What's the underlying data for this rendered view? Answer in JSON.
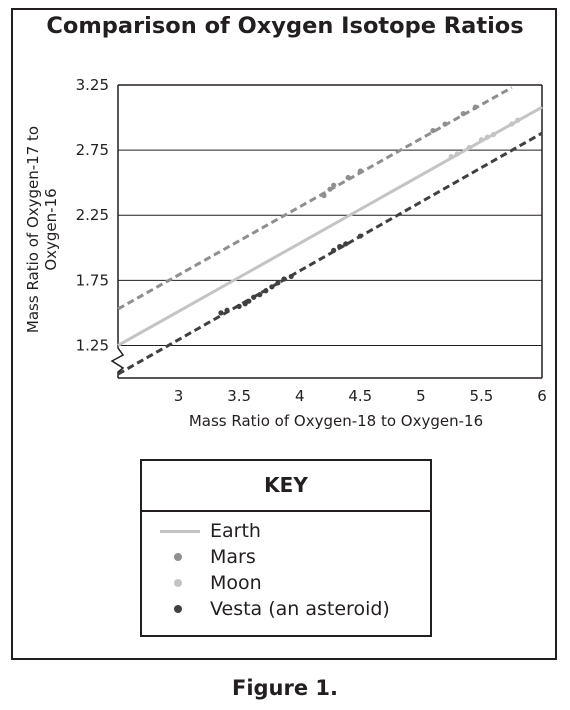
{
  "figure_caption": "Figure 1.",
  "key": {
    "title": "KEY",
    "items": [
      {
        "label": "Earth",
        "marker": "line",
        "color": "#c4c4c4"
      },
      {
        "label": "Mars",
        "marker": "dot",
        "color": "#8f8f8f"
      },
      {
        "label": "Moon",
        "marker": "dot",
        "color": "#c4c4c4"
      },
      {
        "label": "Vesta (an asteroid)",
        "marker": "dot",
        "color": "#404040"
      }
    ]
  },
  "chart_data": {
    "type": "scatter",
    "title": "Comparison of Oxygen Isotope Ratios",
    "xlabel": "Mass Ratio of Oxygen-18 to Oxygen-16",
    "ylabel_lines": [
      "Mass Ratio of Oxygen-17 to",
      "Oxygen-16"
    ],
    "xlim": [
      2.5,
      6
    ],
    "ylim": [
      1.0,
      3.25
    ],
    "axis_break": "y",
    "grid": "horizontal",
    "x_ticks": [
      "3",
      "3.5",
      "4",
      "4.5",
      "5",
      "5.5",
      "6"
    ],
    "y_ticks": [
      "1.25",
      "1.75",
      "2.25",
      "2.75",
      "3.25"
    ],
    "series": [
      {
        "name": "Earth",
        "style": "solid-line",
        "color": "#c4c4c4",
        "line": [
          [
            2.5,
            1.25
          ],
          [
            6.0,
            3.08
          ]
        ]
      },
      {
        "name": "Mars",
        "style": "dashed-line-with-points",
        "color": "#8f8f8f",
        "line": [
          [
            2.5,
            1.53
          ],
          [
            5.75,
            3.23
          ]
        ],
        "points": [
          [
            4.2,
            2.4
          ],
          [
            4.25,
            2.45
          ],
          [
            4.28,
            2.48
          ],
          [
            4.4,
            2.54
          ],
          [
            4.5,
            2.59
          ],
          [
            5.1,
            2.9
          ],
          [
            5.2,
            2.95
          ],
          [
            5.35,
            3.03
          ],
          [
            5.45,
            3.08
          ]
        ]
      },
      {
        "name": "Moon",
        "style": "points",
        "color": "#c4c4c4",
        "points": [
          [
            5.25,
            2.7
          ],
          [
            5.3,
            2.72
          ],
          [
            5.4,
            2.77
          ],
          [
            5.5,
            2.83
          ],
          [
            5.55,
            2.85
          ],
          [
            5.6,
            2.87
          ],
          [
            5.75,
            2.95
          ],
          [
            5.8,
            2.98
          ]
        ]
      },
      {
        "name": "Vesta (an asteroid)",
        "style": "dashed-line-with-points",
        "color": "#404040",
        "line": [
          [
            2.5,
            1.03
          ],
          [
            6.0,
            2.88
          ]
        ],
        "points": [
          [
            3.35,
            1.5
          ],
          [
            3.4,
            1.52
          ],
          [
            3.5,
            1.55
          ],
          [
            3.55,
            1.57
          ],
          [
            3.58,
            1.59
          ],
          [
            3.62,
            1.62
          ],
          [
            3.67,
            1.64
          ],
          [
            3.72,
            1.67
          ],
          [
            3.77,
            1.7
          ],
          [
            3.82,
            1.73
          ],
          [
            3.87,
            1.76
          ],
          [
            3.93,
            1.78
          ],
          [
            4.28,
            1.98
          ],
          [
            4.33,
            2.01
          ],
          [
            4.38,
            2.03
          ],
          [
            4.5,
            2.09
          ]
        ]
      }
    ]
  }
}
